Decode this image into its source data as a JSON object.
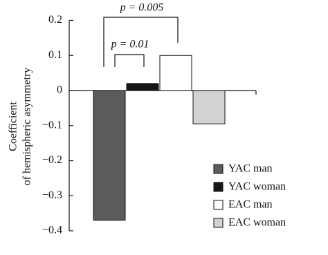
{
  "chart_data": {
    "type": "bar",
    "ylabel": [
      "Coefficient",
      "of hemispheric asymmetry"
    ],
    "ylim": [
      -0.4,
      0.2
    ],
    "yticks": [
      0.2,
      0.1,
      0,
      {
        "value": -0.1,
        "label": "−0.1"
      },
      {
        "value": -0.2,
        "label": "−0.2"
      },
      {
        "value": -0.3,
        "label": "−0.3"
      },
      {
        "value": -0.4,
        "label": "−0.4"
      }
    ],
    "series": [
      {
        "name": "YAC man",
        "color": "#5b5b5b",
        "values": [
          -0.37
        ]
      },
      {
        "name": "YAC woman",
        "color": "#151515",
        "values": [
          0.02
        ]
      },
      {
        "name": "EAC man",
        "color": "#ffffff",
        "values": [
          0.1
        ]
      },
      {
        "name": "EAC woman",
        "color": "#d2d2d2",
        "values": [
          -0.095
        ]
      }
    ],
    "annotations": [
      "p = 0.005",
      "p = 0.01"
    ]
  }
}
